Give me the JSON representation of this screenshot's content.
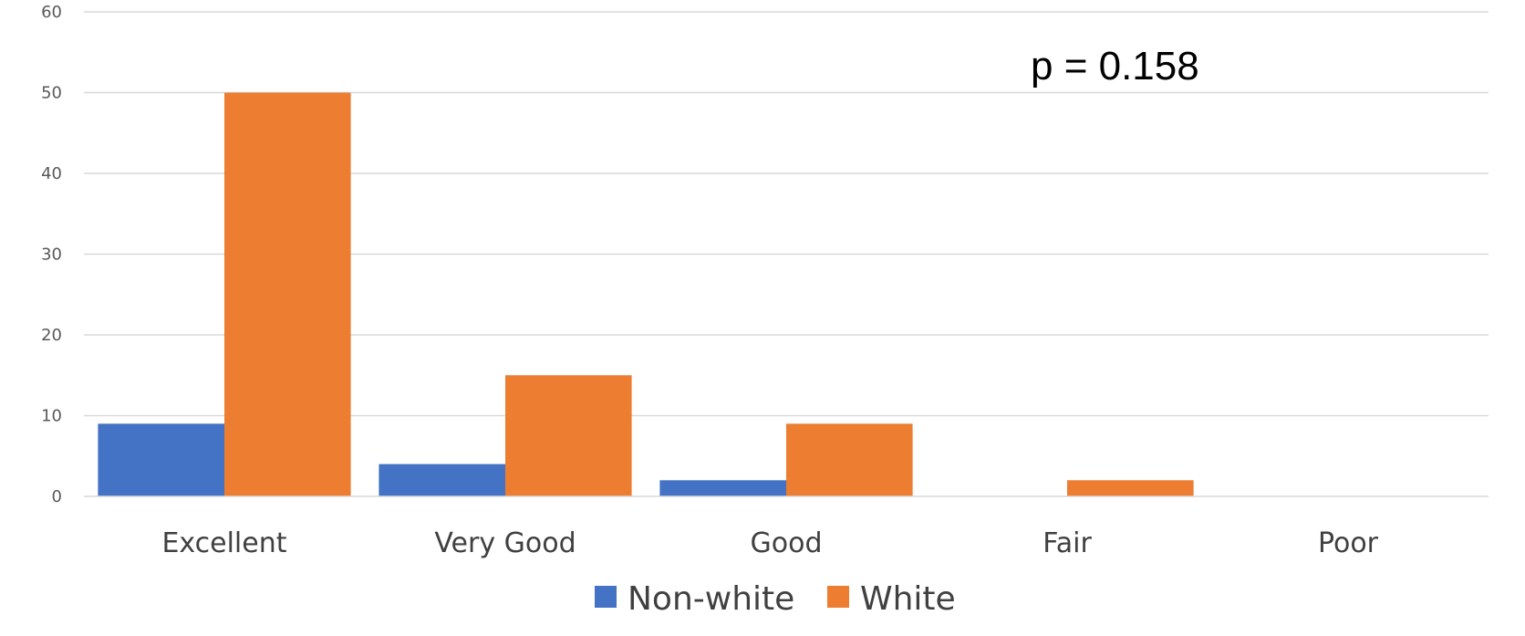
{
  "chart_data": {
    "type": "bar",
    "categories": [
      "Excellent",
      "Very Good",
      "Good",
      "Fair",
      "Poor"
    ],
    "series": [
      {
        "name": "Non-white",
        "color": "#4472c4",
        "values": [
          9,
          4,
          2,
          0,
          0
        ]
      },
      {
        "name": "White",
        "color": "#ed7d31",
        "values": [
          50,
          15,
          9,
          2,
          0
        ]
      }
    ],
    "ylim": [
      0,
      60
    ],
    "yticks": [
      0,
      10,
      20,
      30,
      40,
      50,
      60
    ],
    "grid": true,
    "legend_position": "bottom",
    "annotation": "p = 0.158",
    "title": "",
    "xlabel": "",
    "ylabel": ""
  }
}
